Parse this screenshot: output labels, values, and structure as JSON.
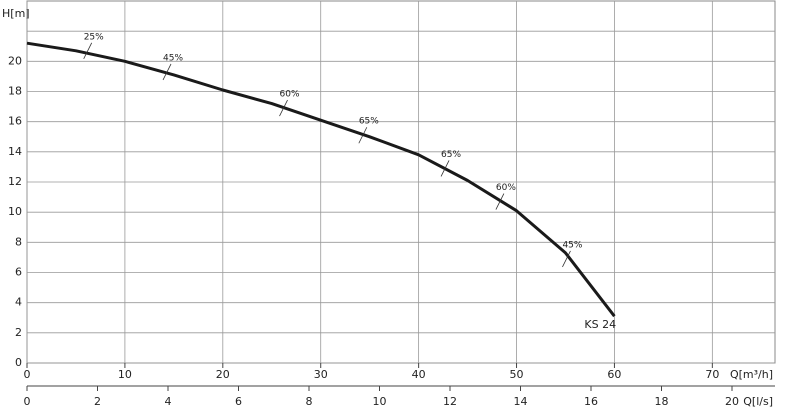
{
  "chart_data": {
    "type": "line",
    "y_label": "H[m]",
    "x_label": "Q[m³/h]",
    "x2_label": "Q[l/s]",
    "x": [
      0,
      5,
      10,
      15,
      20,
      25,
      30,
      35,
      40,
      45,
      50,
      55,
      60
    ],
    "series": [
      {
        "name": "KS 24",
        "color": "#1a1a1a",
        "values": [
          21.2,
          20.7,
          20.0,
          19.1,
          18.1,
          17.2,
          16.1,
          15.0,
          13.8,
          12.1,
          10.1,
          7.3,
          3.1
        ]
      }
    ],
    "xlim": [
      0,
      76.4
    ],
    "xticks": [
      0,
      10,
      20,
      30,
      40,
      50,
      60,
      70
    ],
    "x2lim": [
      0,
      21.22
    ],
    "x2ticks": [
      0,
      2,
      4,
      6,
      8,
      10,
      12,
      14,
      16,
      18,
      20
    ],
    "ylim": [
      0,
      24
    ],
    "yticks": [
      0,
      2,
      4,
      6,
      8,
      10,
      12,
      14,
      16,
      18,
      20,
      {
        "value": 22,
        "label": null
      }
    ],
    "grid": true,
    "annotations": [
      {
        "x": 6.2,
        "y": 20.7,
        "label": "25%"
      },
      {
        "x": 14.3,
        "y": 19.3,
        "label": "45%"
      },
      {
        "x": 26.2,
        "y": 16.9,
        "label": "60%"
      },
      {
        "x": 34.3,
        "y": 15.1,
        "label": "65%"
      },
      {
        "x": 42.7,
        "y": 12.9,
        "label": "65%"
      },
      {
        "x": 48.3,
        "y": 10.7,
        "label": "60%"
      },
      {
        "x": 55.1,
        "y": 6.9,
        "label": "45%"
      }
    ]
  }
}
